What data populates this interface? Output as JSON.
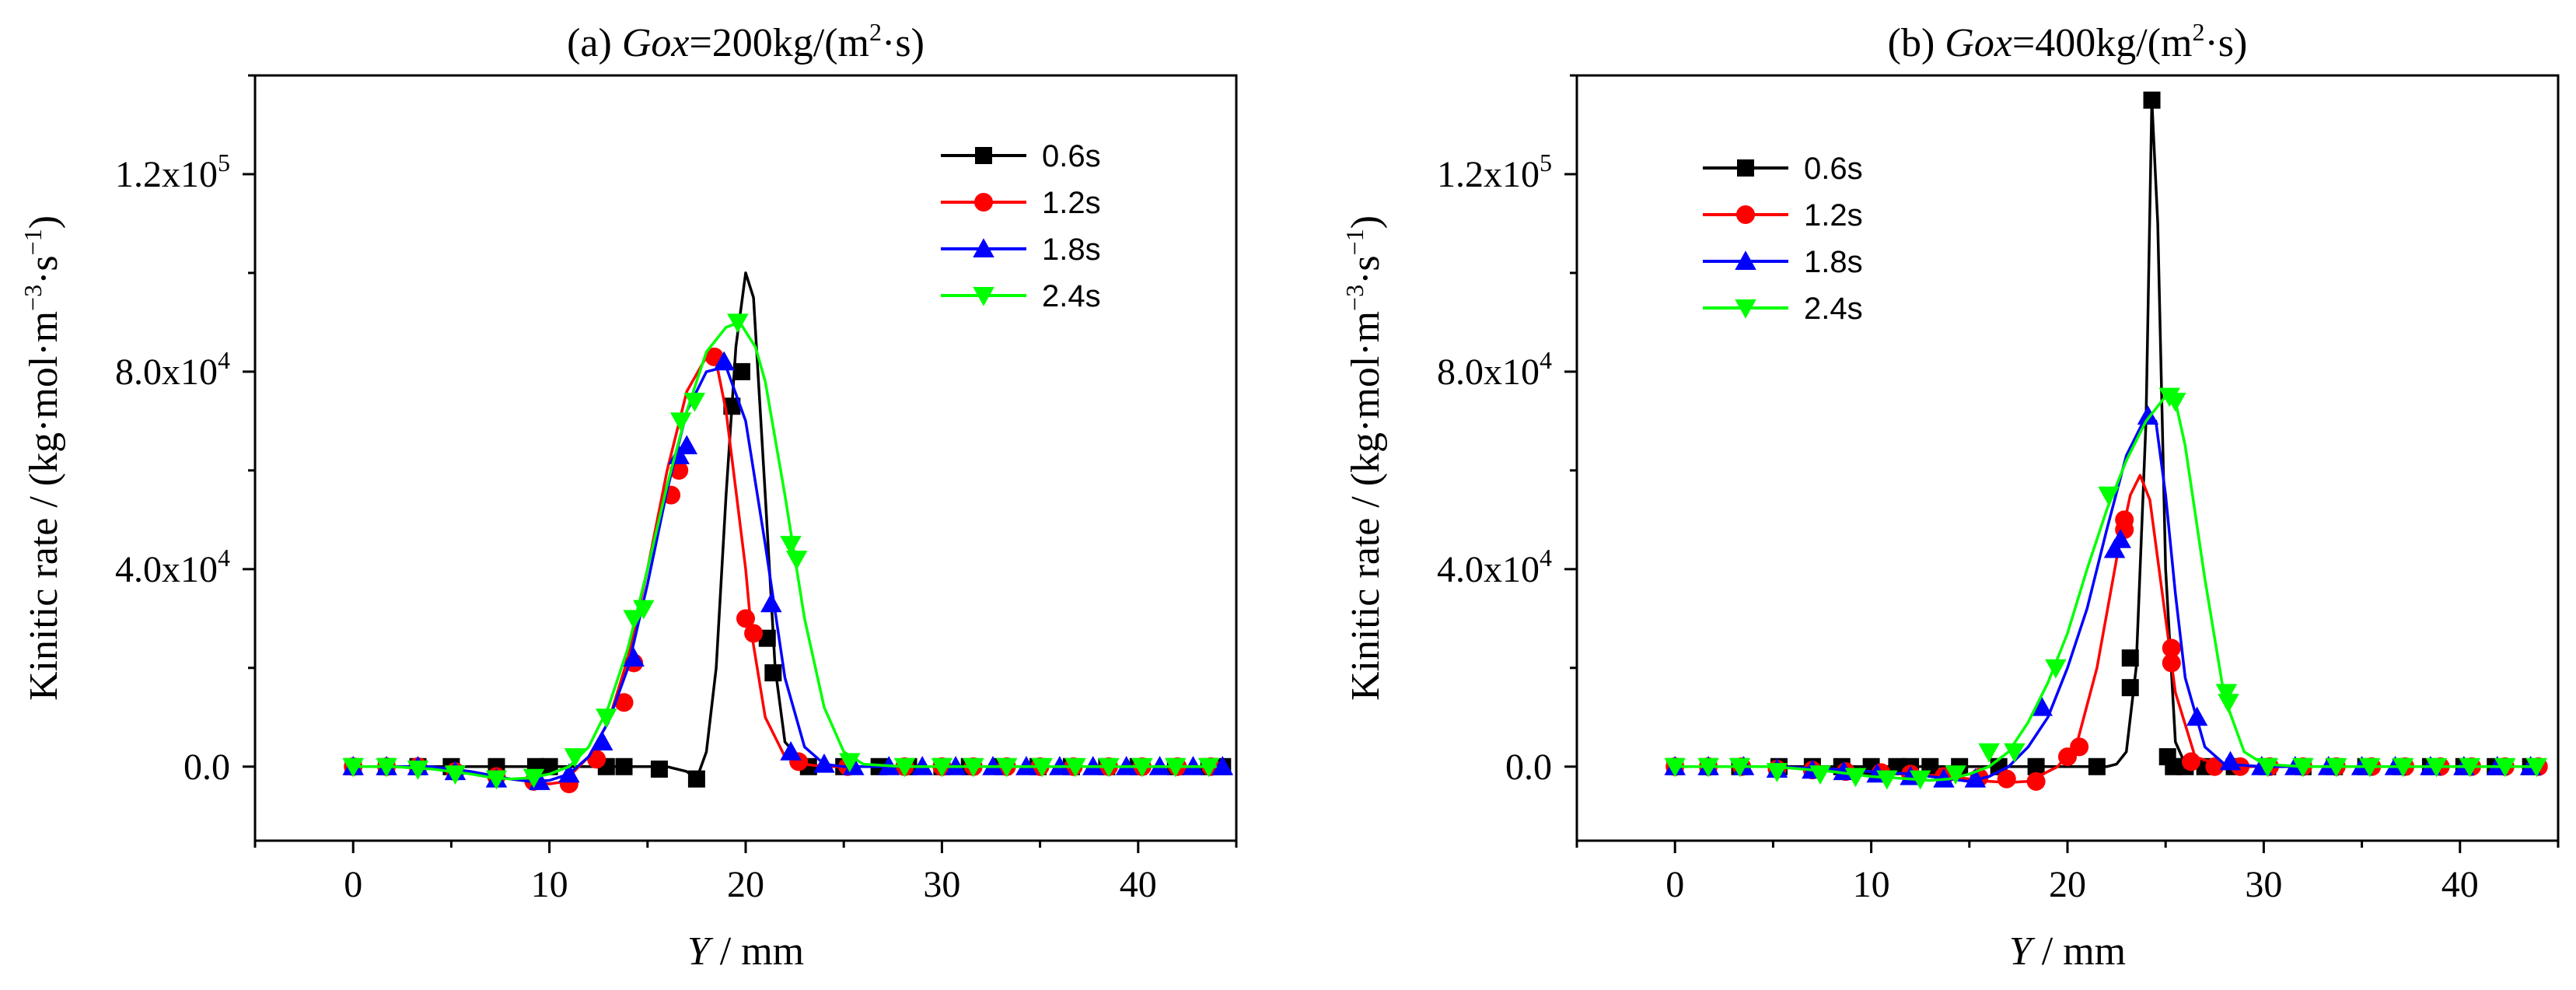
{
  "chart_data": [
    {
      "type": "line",
      "title_prefix": "(a) ",
      "title_italic": "Gox",
      "title_rest": "=200kg/(m",
      "title_sup": "2",
      "title_end": "·s)",
      "xlabel_italic": "Y",
      "xlabel_rest": " / mm",
      "ylabel": "Kinitic rate / (kg·mol·m",
      "ylabel_sup1": "−3",
      "ylabel_mid": "·s",
      "ylabel_sup2": "−1",
      "ylabel_end": ")",
      "xlim": [
        -5,
        45
      ],
      "ylim": [
        -15000,
        140000
      ],
      "xticks": [
        0,
        10,
        20,
        30,
        40
      ],
      "xtick_labels": [
        "0",
        "10",
        "20",
        "30",
        "40"
      ],
      "yticks": [
        0,
        40000,
        80000,
        120000
      ],
      "ytick_labels": [
        "0.0",
        "4.0x10",
        "8.0x10",
        "1.2x10"
      ],
      "ytick_sups": [
        "",
        "4",
        "4",
        "5"
      ],
      "legend_position": "top-right",
      "series": [
        {
          "name": "0.6s",
          "color": "#000000",
          "marker": "square",
          "x": [
            0,
            2,
            4,
            6,
            8,
            9,
            10,
            11,
            12,
            13,
            14,
            15,
            16,
            17,
            17.5,
            18,
            18.5,
            19,
            19.5,
            20,
            20.4,
            21,
            21.5,
            22,
            23,
            24,
            26,
            28,
            30,
            32,
            34,
            36,
            38,
            40,
            42,
            44
          ],
          "y": [
            0,
            0,
            0,
            0,
            0,
            0,
            0,
            0,
            0,
            0,
            0,
            0,
            0,
            -1000,
            -2500,
            3000,
            20000,
            55000,
            85000,
            100000,
            95000,
            55000,
            20000,
            5000,
            500,
            0,
            0,
            0,
            0,
            0,
            0,
            0,
            0,
            0,
            0,
            0
          ],
          "marker_x": [
            0,
            1.7,
            3.3,
            5,
            7.3,
            9.3,
            10,
            12.9,
            13.8,
            15.6,
            17.5,
            19.3,
            19.8,
            21.1,
            21.4,
            23.2,
            25,
            26.8,
            28.3,
            30,
            31.4,
            33.1,
            34.9,
            36.6,
            38.4,
            40,
            41.9,
            43.6,
            44.3
          ],
          "marker_y": [
            0,
            0,
            0,
            0,
            0,
            0,
            0,
            0,
            0,
            -500,
            -2500,
            73000,
            80000,
            26000,
            19000,
            0,
            0,
            0,
            0,
            0,
            0,
            0,
            0,
            0,
            0,
            0,
            0,
            0,
            0
          ]
        },
        {
          "name": "1.2s",
          "color": "#ff0000",
          "marker": "circle",
          "x": [
            0,
            2,
            4,
            6,
            8,
            9,
            10,
            10.5,
            11,
            12,
            13,
            14,
            15,
            16,
            17,
            18,
            18.5,
            19,
            20,
            20.3,
            21,
            22,
            23,
            24,
            26,
            28,
            30,
            32,
            34,
            36,
            38,
            40,
            42,
            44
          ],
          "y": [
            0,
            0,
            0,
            -1000,
            -2500,
            -3000,
            -3500,
            -3200,
            -2000,
            2000,
            9000,
            22000,
            40000,
            60000,
            76000,
            83000,
            82000,
            72000,
            40000,
            27000,
            10000,
            2000,
            500,
            0,
            0,
            0,
            0,
            0,
            0,
            0,
            0,
            0,
            0,
            0
          ],
          "marker_x": [
            0,
            1.7,
            3.3,
            5.2,
            7.3,
            9.2,
            11,
            12.4,
            13.8,
            14.3,
            16.2,
            16.6,
            18.4,
            20,
            20.4,
            22.7,
            25.2,
            28.1,
            30,
            31.6,
            33.3,
            35,
            36.7,
            38.5,
            40.2,
            42,
            43.7
          ],
          "marker_y": [
            0,
            0,
            0,
            -1000,
            -2000,
            -3000,
            -3500,
            1500,
            13000,
            21000,
            55000,
            60000,
            83000,
            30000,
            27000,
            1000,
            0,
            0,
            0,
            0,
            0,
            0,
            0,
            0,
            0,
            0,
            0
          ]
        },
        {
          "name": "1.8s",
          "color": "#0000ff",
          "marker": "triangle-up",
          "x": [
            0,
            2,
            4,
            6,
            8,
            9,
            10,
            11,
            12,
            13,
            14,
            15,
            16,
            17,
            18,
            19,
            20,
            21,
            22,
            23,
            24,
            25,
            26,
            28,
            30,
            32,
            34,
            36,
            38,
            40,
            42,
            44
          ],
          "y": [
            0,
            0,
            0,
            -1000,
            -2500,
            -3000,
            -2800,
            -1500,
            2000,
            9000,
            20000,
            37000,
            56000,
            72000,
            80000,
            81000,
            70000,
            45000,
            18000,
            4000,
            500,
            0,
            0,
            0,
            0,
            0,
            0,
            0,
            0,
            0,
            0,
            0
          ],
          "marker_x": [
            0,
            1.7,
            3.3,
            5.2,
            7.3,
            9.5,
            11,
            12.7,
            14.3,
            16.6,
            17,
            18.9,
            21.3,
            22.3,
            24,
            25.5,
            27.3,
            29,
            30.7,
            32.6,
            34.3,
            36,
            37.7,
            39.4,
            41.1,
            42.8,
            44.3
          ],
          "marker_y": [
            0,
            0,
            0,
            -1000,
            -2500,
            -3000,
            -1500,
            5000,
            22000,
            63000,
            65000,
            82000,
            33000,
            3000,
            500,
            0,
            0,
            0,
            0,
            0,
            0,
            0,
            0,
            0,
            0,
            0,
            0
          ]
        },
        {
          "name": "2.4s",
          "color": "#00ff00",
          "marker": "triangle-down",
          "x": [
            0,
            2,
            4,
            6,
            7,
            8,
            9,
            10,
            11,
            12,
            13,
            14,
            15,
            16,
            17,
            18,
            19,
            19.7,
            20.5,
            21,
            22,
            23,
            24,
            25,
            26,
            28,
            30,
            32,
            34,
            36,
            38,
            40,
            42,
            44
          ],
          "y": [
            0,
            0,
            -500,
            -1500,
            -2200,
            -2500,
            -2300,
            -1500,
            0,
            4000,
            12000,
            24000,
            40000,
            57000,
            72000,
            84000,
            89000,
            90000,
            85000,
            78000,
            55000,
            30000,
            12000,
            3000,
            500,
            0,
            0,
            0,
            0,
            0,
            0,
            0,
            0,
            0
          ],
          "marker_x": [
            0,
            1.7,
            3.3,
            5.2,
            7.3,
            9.2,
            11.3,
            12.9,
            14.3,
            14.8,
            16.7,
            17.4,
            19.6,
            22.3,
            22.6,
            25.3,
            28.1,
            30,
            31.6,
            33.3,
            35.1,
            36.8,
            38.5,
            40.2,
            41.9,
            43.6
          ],
          "marker_y": [
            0,
            0,
            -500,
            -1500,
            -2500,
            -2200,
            2000,
            10000,
            30000,
            32000,
            70000,
            74000,
            90000,
            45000,
            42000,
            1000,
            0,
            0,
            0,
            0,
            0,
            0,
            0,
            0,
            0,
            0
          ]
        }
      ]
    },
    {
      "type": "line",
      "title_prefix": "(b) ",
      "title_italic": "Gox",
      "title_rest": "=400kg/(m",
      "title_sup": "2",
      "title_end": "·s)",
      "xlabel_italic": "Y",
      "xlabel_rest": " / mm",
      "ylabel": "Kinitic rate / (kg·mol·m",
      "ylabel_sup1": "−3",
      "ylabel_mid": "·s",
      "ylabel_sup2": "−1",
      "ylabel_end": ")",
      "xlim": [
        -5,
        45
      ],
      "ylim": [
        -15000,
        140000
      ],
      "xticks": [
        0,
        10,
        20,
        30,
        40
      ],
      "xtick_labels": [
        "0",
        "10",
        "20",
        "30",
        "40"
      ],
      "yticks": [
        0,
        40000,
        80000,
        120000
      ],
      "ytick_labels": [
        "0.0",
        "4.0x10",
        "8.0x10",
        "1.2x10"
      ],
      "ytick_sups": [
        "",
        "4",
        "4",
        "5"
      ],
      "legend_position": "top-left",
      "series": [
        {
          "name": "0.6s",
          "color": "#000000",
          "marker": "square",
          "x": [
            0,
            5,
            10,
            15,
            20,
            21,
            22,
            22.5,
            23,
            23.5,
            24,
            24.3,
            24.6,
            25,
            25.5,
            26,
            27,
            30,
            35,
            40,
            44
          ],
          "y": [
            0,
            0,
            0,
            0,
            0,
            0,
            0,
            500,
            3000,
            20000,
            70000,
            135000,
            110000,
            40000,
            5000,
            500,
            0,
            0,
            0,
            0,
            0
          ],
          "marker_x": [
            0,
            1.7,
            3.3,
            5.3,
            7,
            8.5,
            10,
            11.3,
            12,
            13,
            14.5,
            16.5,
            18.4,
            21.5,
            23.2,
            23.2,
            24.3,
            25.1,
            25.4,
            26,
            27,
            28.5,
            30.2,
            32,
            33.6,
            35.2,
            37,
            38.5,
            40.2,
            41.8,
            43.6
          ],
          "marker_y": [
            0,
            0,
            0,
            0,
            0,
            0,
            0,
            0,
            0,
            0,
            0,
            0,
            0,
            0,
            16000,
            22000,
            135000,
            2000,
            0,
            0,
            0,
            0,
            0,
            0,
            0,
            0,
            0,
            0,
            0,
            0,
            0
          ]
        },
        {
          "name": "1.2s",
          "color": "#ff0000",
          "marker": "circle",
          "x": [
            0,
            5,
            8,
            10,
            12,
            14,
            15,
            16,
            17,
            18,
            18.5,
            19.5,
            20.5,
            21.5,
            22.5,
            23.2,
            23.7,
            24.2,
            25,
            25.5,
            26.5,
            28,
            30,
            35,
            40,
            44
          ],
          "y": [
            0,
            0,
            -500,
            -1000,
            -1500,
            -2000,
            -2500,
            -3000,
            -3200,
            -3000,
            -2000,
            0,
            5000,
            20000,
            42000,
            55000,
            59000,
            54000,
            30000,
            15000,
            2000,
            0,
            0,
            0,
            0,
            0
          ],
          "marker_x": [
            0,
            1.7,
            3.4,
            5.2,
            7,
            8.7,
            10.5,
            12,
            13.7,
            15.5,
            16.9,
            18.4,
            20,
            20.6,
            22.9,
            22.9,
            25.3,
            25.3,
            26.3,
            27.5,
            28.8,
            30.3,
            32,
            33.7,
            35.5,
            37.2,
            39,
            40.6,
            42.3,
            44
          ],
          "marker_y": [
            0,
            0,
            0,
            -500,
            -700,
            -1000,
            -1200,
            -1500,
            -2000,
            -2200,
            -2500,
            -3000,
            2000,
            4000,
            48000,
            50000,
            21000,
            24000,
            1000,
            0,
            0,
            0,
            0,
            0,
            0,
            0,
            0,
            0,
            0,
            0
          ]
        },
        {
          "name": "1.8s",
          "color": "#0000ff",
          "marker": "triangle-up",
          "x": [
            0,
            5,
            8,
            10,
            12,
            14,
            15,
            16,
            17,
            18,
            19,
            20,
            21,
            22,
            23,
            24,
            24.5,
            25,
            25.5,
            26,
            27,
            28,
            30,
            35,
            40,
            44
          ],
          "y": [
            0,
            0,
            -500,
            -1000,
            -1500,
            -2500,
            -3000,
            -2000,
            0,
            4000,
            10000,
            20000,
            32000,
            48000,
            63000,
            71000,
            70000,
            55000,
            35000,
            18000,
            4000,
            500,
            0,
            0,
            0,
            0
          ],
          "marker_x": [
            0,
            1.7,
            3.5,
            5.2,
            7,
            8.6,
            10.3,
            12,
            13.7,
            15.3,
            18.7,
            22.4,
            22.7,
            24.1,
            26.6,
            28.3,
            29.9,
            31.6,
            33.3,
            35,
            36.7,
            38.5,
            40.2,
            41.9,
            43.6
          ],
          "marker_y": [
            0,
            0,
            0,
            -500,
            -700,
            -1000,
            -1500,
            -2000,
            -2500,
            -2500,
            12000,
            44000,
            46000,
            71000,
            10000,
            1000,
            0,
            0,
            0,
            0,
            0,
            0,
            0,
            0,
            0
          ]
        },
        {
          "name": "2.4s",
          "color": "#00ff00",
          "marker": "triangle-down",
          "x": [
            0,
            5,
            8,
            10,
            12,
            13,
            14,
            15,
            16,
            17,
            18,
            19,
            20,
            21,
            22,
            23,
            24,
            25,
            25.5,
            26,
            27,
            28,
            29,
            30,
            32,
            35,
            40,
            44
          ],
          "y": [
            0,
            0,
            -1000,
            -2000,
            -2500,
            -2800,
            -2500,
            -1500,
            0,
            3000,
            9000,
            17000,
            27000,
            40000,
            52000,
            62000,
            70000,
            75000,
            74000,
            65000,
            38000,
            14000,
            3000,
            500,
            0,
            0,
            0,
            0
          ],
          "marker_x": [
            0,
            1.7,
            3.3,
            5.2,
            7.4,
            9.2,
            10.8,
            12.5,
            14.3,
            16,
            17.3,
            19.4,
            22.1,
            25.2,
            25.5,
            28.1,
            28.2,
            30.2,
            32,
            33.7,
            35.4,
            37.1,
            38.8,
            40.5,
            42.3,
            43.9
          ],
          "marker_y": [
            0,
            0,
            0,
            -1000,
            -1500,
            -2000,
            -2500,
            -2500,
            -1500,
            3000,
            3000,
            20000,
            55000,
            75000,
            74000,
            15000,
            13000,
            0,
            0,
            0,
            0,
            0,
            0,
            0,
            0,
            0
          ]
        }
      ]
    }
  ]
}
